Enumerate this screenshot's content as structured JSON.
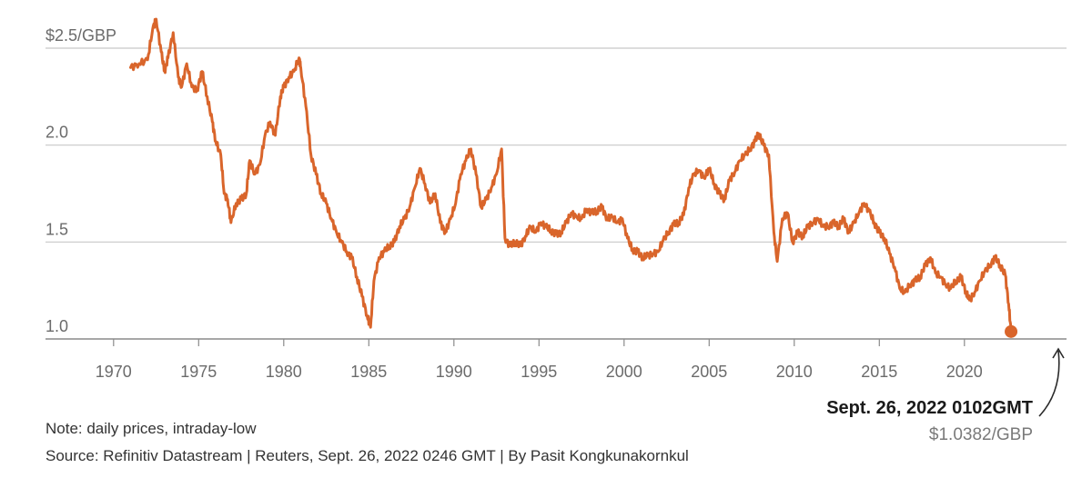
{
  "chart_data": {
    "type": "line",
    "series": [
      {
        "x": [
          1971.0,
          1971.5,
          1972.0,
          1972.3,
          1972.5,
          1972.8,
          1973.0,
          1973.2,
          1973.5,
          1973.8,
          1974.0,
          1974.3,
          1974.6,
          1974.9,
          1975.2,
          1975.5,
          1975.8,
          1976.0,
          1976.3,
          1976.5,
          1976.7,
          1976.9,
          1977.2,
          1977.5,
          1977.8,
          1978.0,
          1978.3,
          1978.6,
          1978.9,
          1979.2,
          1979.5,
          1979.8,
          1980.0,
          1980.3,
          1980.6,
          1980.9,
          1981.0,
          1981.3,
          1981.6,
          1981.9,
          1982.2,
          1982.5,
          1982.8,
          1983.1,
          1983.4,
          1983.7,
          1984.0,
          1984.3,
          1984.6,
          1984.9,
          1985.1,
          1985.3,
          1985.6,
          1985.9,
          1986.2,
          1986.5,
          1986.8,
          1987.1,
          1987.4,
          1987.7,
          1988.0,
          1988.3,
          1988.6,
          1988.9,
          1989.2,
          1989.5,
          1989.8,
          1990.1,
          1990.4,
          1990.7,
          1991.0,
          1991.3,
          1991.6,
          1991.9,
          1992.2,
          1992.5,
          1992.8,
          1993.0,
          1993.3,
          1993.6,
          1993.9,
          1994.2,
          1994.5,
          1994.8,
          1995.1,
          1995.4,
          1995.7,
          1996.0,
          1996.3,
          1996.6,
          1996.9,
          1997.2,
          1997.5,
          1997.8,
          1998.1,
          1998.4,
          1998.7,
          1999.0,
          1999.3,
          1999.6,
          1999.9,
          2000.2,
          2000.5,
          2000.8,
          2001.1,
          2001.4,
          2001.7,
          2002.0,
          2002.3,
          2002.6,
          2002.9,
          2003.2,
          2003.5,
          2003.8,
          2004.1,
          2004.4,
          2004.7,
          2005.0,
          2005.3,
          2005.6,
          2005.9,
          2006.2,
          2006.5,
          2006.8,
          2007.1,
          2007.4,
          2007.7,
          2007.9,
          2008.2,
          2008.5,
          2008.8,
          2009.0,
          2009.3,
          2009.6,
          2009.9,
          2010.2,
          2010.5,
          2010.8,
          2011.1,
          2011.4,
          2011.7,
          2012.0,
          2012.3,
          2012.6,
          2012.9,
          2013.2,
          2013.5,
          2013.8,
          2014.1,
          2014.4,
          2014.7,
          2015.0,
          2015.3,
          2015.6,
          2015.9,
          2016.2,
          2016.5,
          2016.8,
          2017.1,
          2017.4,
          2017.7,
          2018.0,
          2018.3,
          2018.6,
          2018.9,
          2019.2,
          2019.5,
          2019.8,
          2020.1,
          2020.3,
          2020.6,
          2020.9,
          2021.2,
          2021.5,
          2021.8,
          2022.1,
          2022.4,
          2022.6,
          2022.74
        ],
        "y": [
          2.4,
          2.42,
          2.44,
          2.6,
          2.65,
          2.48,
          2.38,
          2.45,
          2.58,
          2.35,
          2.3,
          2.42,
          2.3,
          2.28,
          2.38,
          2.25,
          2.12,
          2.02,
          1.95,
          1.75,
          1.72,
          1.6,
          1.7,
          1.72,
          1.75,
          1.92,
          1.85,
          1.9,
          2.05,
          2.12,
          2.05,
          2.25,
          2.3,
          2.35,
          2.38,
          2.45,
          2.4,
          2.2,
          1.95,
          1.85,
          1.75,
          1.7,
          1.62,
          1.55,
          1.5,
          1.45,
          1.42,
          1.32,
          1.22,
          1.12,
          1.06,
          1.3,
          1.42,
          1.45,
          1.48,
          1.5,
          1.58,
          1.62,
          1.68,
          1.78,
          1.88,
          1.8,
          1.7,
          1.75,
          1.6,
          1.55,
          1.62,
          1.7,
          1.85,
          1.92,
          1.98,
          1.85,
          1.68,
          1.72,
          1.78,
          1.85,
          1.98,
          1.52,
          1.48,
          1.5,
          1.48,
          1.53,
          1.58,
          1.55,
          1.6,
          1.58,
          1.56,
          1.54,
          1.55,
          1.6,
          1.65,
          1.63,
          1.62,
          1.67,
          1.65,
          1.66,
          1.68,
          1.62,
          1.63,
          1.6,
          1.62,
          1.52,
          1.46,
          1.45,
          1.42,
          1.43,
          1.44,
          1.45,
          1.51,
          1.55,
          1.59,
          1.6,
          1.64,
          1.78,
          1.85,
          1.87,
          1.83,
          1.88,
          1.8,
          1.75,
          1.72,
          1.82,
          1.86,
          1.92,
          1.95,
          1.98,
          2.02,
          2.06,
          2.0,
          1.95,
          1.55,
          1.4,
          1.62,
          1.65,
          1.5,
          1.55,
          1.53,
          1.58,
          1.6,
          1.62,
          1.58,
          1.58,
          1.6,
          1.58,
          1.62,
          1.55,
          1.6,
          1.65,
          1.7,
          1.66,
          1.6,
          1.55,
          1.52,
          1.44,
          1.37,
          1.26,
          1.24,
          1.28,
          1.3,
          1.32,
          1.38,
          1.42,
          1.34,
          1.32,
          1.28,
          1.26,
          1.3,
          1.32,
          1.24,
          1.2,
          1.24,
          1.3,
          1.35,
          1.38,
          1.42,
          1.38,
          1.33,
          1.18,
          1.0382
        ]
      }
    ],
    "xlim": [
      1966.0,
      2026.0
    ],
    "ylim": [
      1.0,
      2.5
    ],
    "x_ticks": [
      "1970",
      "1975",
      "1980",
      "1985",
      "1990",
      "1995",
      "2000",
      "2005",
      "2010",
      "2015",
      "2020"
    ],
    "y_ticks": [
      "1.0",
      "1.5",
      "2.0",
      "$2.5/GBP"
    ],
    "grid": true,
    "color": "#d9652b",
    "annotation": {
      "title": "Sept. 26, 2022 0102GMT",
      "value": "$1.0382/GBP",
      "x": 2022.74,
      "y": 1.0382
    }
  },
  "footer": {
    "note": "Note: daily prices, intraday-low",
    "source": "Source: Refinitiv Datastream | Reuters, Sept. 26, 2022 0246 GMT | By Pasit Kongkunakornkul"
  }
}
